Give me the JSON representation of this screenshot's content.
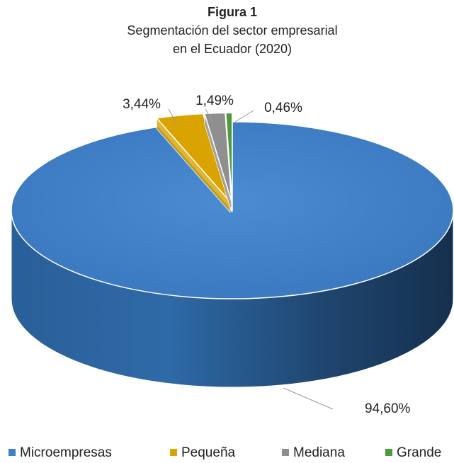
{
  "chart_data": {
    "type": "pie3d",
    "title": "Figura 1",
    "subtitle": [
      "Segmentación del sector empresarial",
      "en el Ecuador (2020)"
    ],
    "categories": [
      "Microempresas",
      "Pequeña",
      "Mediana",
      "Grande"
    ],
    "values": [
      94.6,
      3.44,
      1.49,
      0.46
    ],
    "value_labels": [
      "94,60%",
      "3,44%",
      "1,49%",
      "0,46%"
    ],
    "colors": [
      "#3f80c8",
      "#d9a300",
      "#8f8f8f",
      "#4f9a3a"
    ],
    "legend": "bottom"
  }
}
